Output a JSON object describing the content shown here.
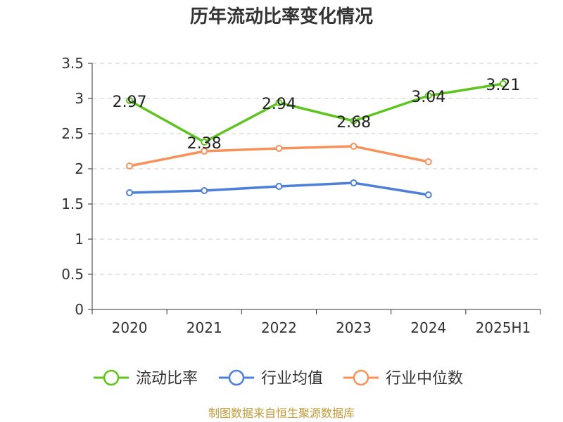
{
  "chart_data": {
    "type": "line",
    "title": "历年流动比率变化情况",
    "categories": [
      "2020",
      "2021",
      "2022",
      "2023",
      "2024",
      "2025H1"
    ],
    "series": [
      {
        "name": "流动比率",
        "color": "#5fc320",
        "values": [
          2.97,
          2.38,
          2.94,
          2.68,
          3.04,
          3.21
        ],
        "labels": [
          "2.97",
          "2.38",
          "2.94",
          "2.68",
          "3.04",
          "3.21"
        ]
      },
      {
        "name": "行业均值",
        "color": "#4d7fd9",
        "values": [
          1.66,
          1.69,
          1.75,
          1.8,
          1.63,
          null
        ]
      },
      {
        "name": "行业中位数",
        "color": "#f6915a",
        "values": [
          2.04,
          2.25,
          2.29,
          2.32,
          2.1,
          null
        ]
      }
    ],
    "y_ticks": [
      "0",
      "0.5",
      "1",
      "1.5",
      "2",
      "2.5",
      "3",
      "3.5"
    ],
    "ylim": [
      0,
      3.5
    ],
    "grid": true,
    "legend_position": "bottom"
  },
  "source_note": "制图数据来自恒生聚源数据库"
}
